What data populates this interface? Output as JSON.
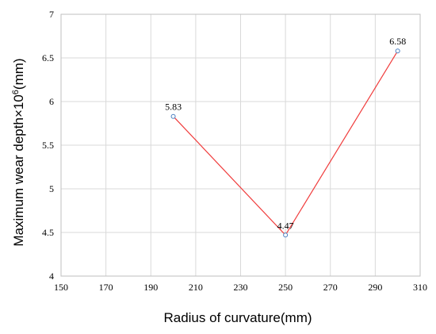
{
  "chart_data": {
    "type": "line",
    "xlabel": "Radius of curvature(mm)",
    "ylabel": {
      "prefix": "Maximum wear depth×10",
      "superscript": "6",
      "suffix": "(mm)"
    },
    "xlim": [
      150,
      310
    ],
    "ylim": [
      4,
      7
    ],
    "xticks": [
      150,
      170,
      190,
      210,
      230,
      250,
      270,
      290,
      310
    ],
    "yticks": [
      "4",
      "4.5",
      "5",
      "5.5",
      "6",
      "6.5",
      "7"
    ],
    "grid": true,
    "series": [
      {
        "x": [
          200,
          250,
          300
        ],
        "values": [
          5.83,
          4.47,
          6.58
        ],
        "labels": [
          "5.83",
          "4.47",
          "6.58"
        ],
        "line_color": "#f03c3c",
        "marker_color": "#4a7fc1"
      }
    ]
  }
}
